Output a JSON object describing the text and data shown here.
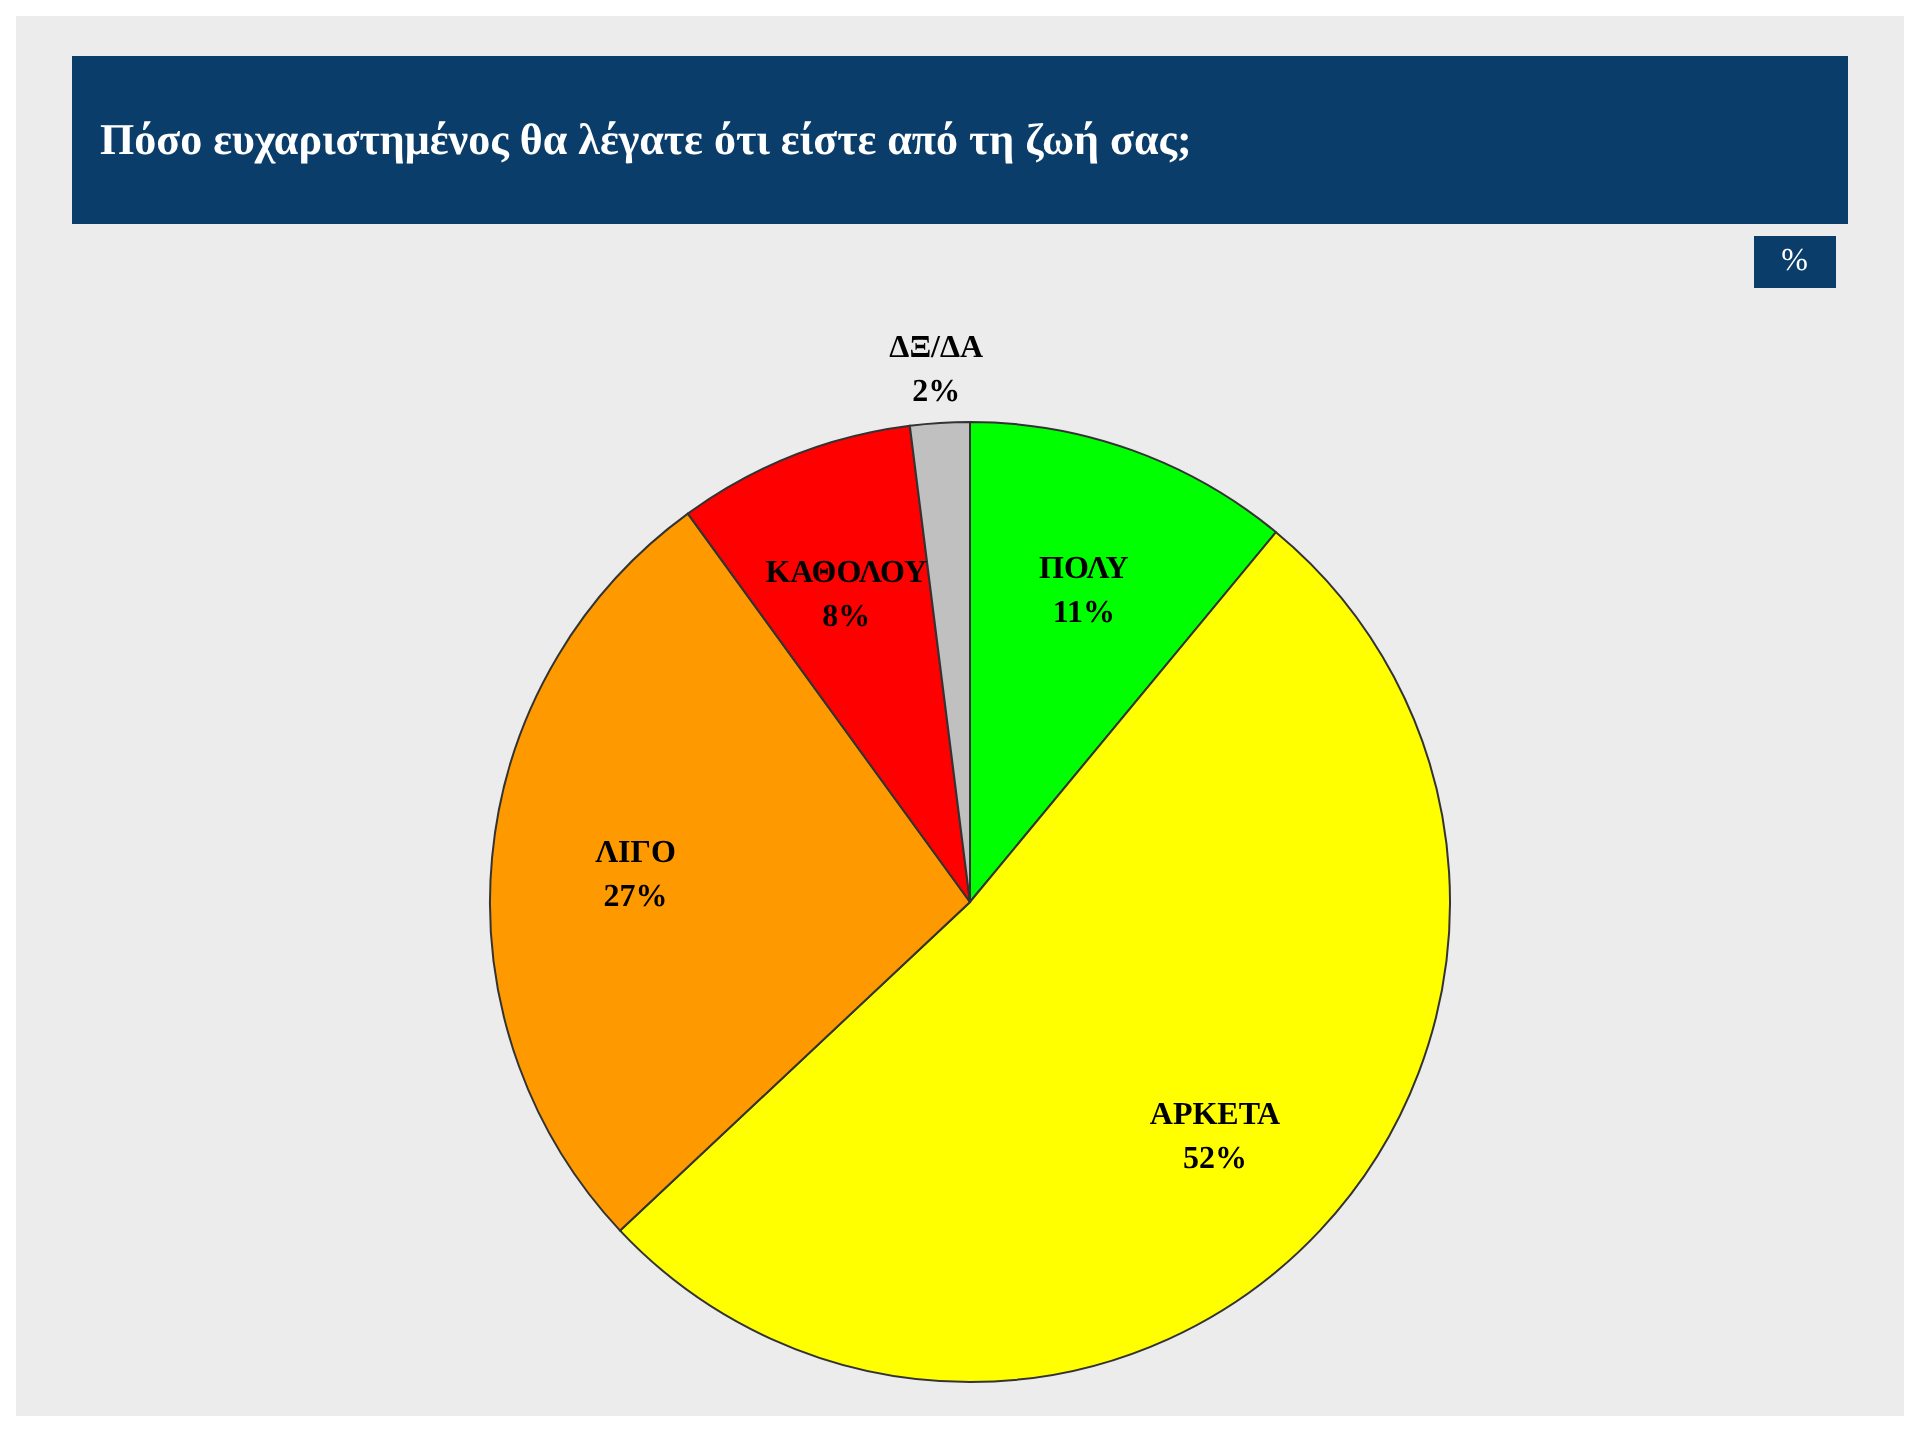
{
  "chart_data": {
    "type": "pie",
    "title": "Πόσο ευχαριστημένος θα λέγατε ότι είστε από τη ζωή σας;",
    "annotations": [
      "%"
    ],
    "categories": [
      "ΠΟΛΥ",
      "ΑΡΚΕΤΑ",
      "ΛΙΓΟ",
      "ΚΑΘΟΛΟΥ",
      "ΔΞ/ΔΑ"
    ],
    "values": [
      11,
      52,
      27,
      8,
      2
    ],
    "value_labels": [
      "11%",
      "52%",
      "27%",
      "8%",
      "2%"
    ],
    "colors": [
      "#00ff00",
      "#ffff00",
      "#ff9900",
      "#ff0000",
      "#c0c0c0"
    ],
    "legend": false
  }
}
